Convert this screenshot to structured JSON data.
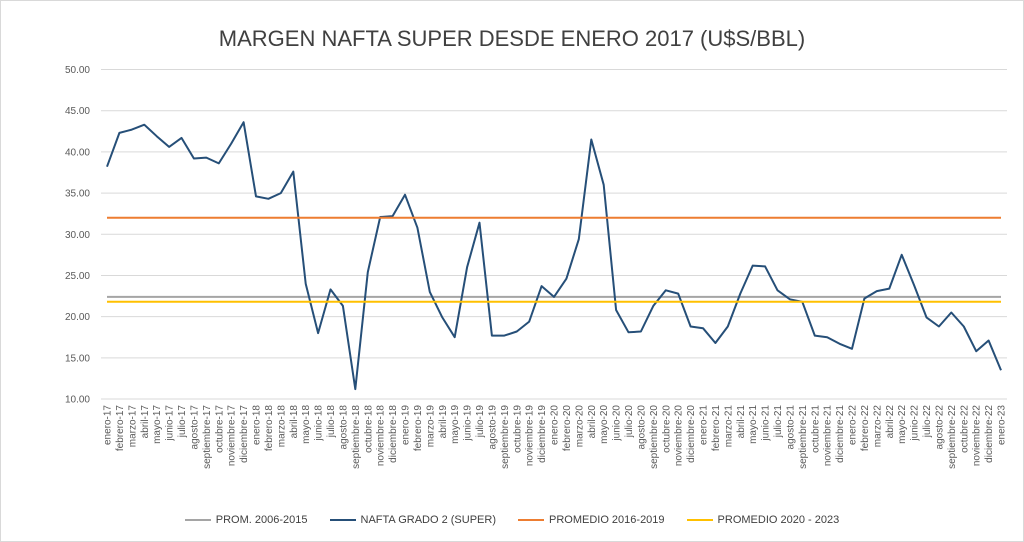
{
  "chart_data": {
    "type": "line",
    "title": "MARGEN NAFTA SUPER DESDE ENERO 2017 (U$S/BBL)",
    "xlabel": "",
    "ylabel": "",
    "ylim": [
      10,
      50
    ],
    "yticks": [
      "10.00",
      "15.00",
      "20.00",
      "25.00",
      "30.00",
      "35.00",
      "40.00",
      "45.00",
      "50.00"
    ],
    "grid": true,
    "legend_position": "bottom",
    "categories": [
      "enero-17",
      "febrero-17",
      "marzo-17",
      "abril-17",
      "mayo-17",
      "junio-17",
      "julio-17",
      "agosto-17",
      "septiembre-17",
      "octubre-17",
      "noviembre-17",
      "diciembre-17",
      "enero-18",
      "febrero-18",
      "marzo-18",
      "abril-18",
      "mayo-18",
      "junio-18",
      "julio-18",
      "agosto-18",
      "septiembre-18",
      "octubre-18",
      "noviembre-18",
      "diciembre-18",
      "enero-19",
      "febrero-19",
      "marzo-19",
      "abril-19",
      "mayo-19",
      "junio-19",
      "julio-19",
      "agosto-19",
      "septiembre-19",
      "octubre-19",
      "noviembre-19",
      "diciembre-19",
      "enero-20",
      "febrero-20",
      "marzo-20",
      "abril-20",
      "mayo-20",
      "junio-20",
      "julio-20",
      "agosto-20",
      "septiembre-20",
      "octubre-20",
      "noviembre-20",
      "diciembre-20",
      "enero-21",
      "febrero-21",
      "marzo-21",
      "abril-21",
      "mayo-21",
      "junio-21",
      "julio-21",
      "agosto-21",
      "septiembre-21",
      "octubre-21",
      "noviembre-21",
      "diciembre-21",
      "enero-22",
      "febrero-22",
      "marzo-22",
      "abril-22",
      "mayo-22",
      "junio-22",
      "julio-22",
      "agosto-22",
      "septiembre-22",
      "octubre-22",
      "noviembre-22",
      "diciembre-22",
      "enero-23"
    ],
    "series": [
      {
        "name": "PROM. 2006-2015",
        "color": "#a5a5a5",
        "constant": 22.4
      },
      {
        "name": "NAFTA GRADO 2 (SUPER)",
        "color": "#264f78",
        "values": [
          38.2,
          42.3,
          42.7,
          43.3,
          41.9,
          40.6,
          41.7,
          39.2,
          39.3,
          38.6,
          41.0,
          43.6,
          34.6,
          34.3,
          35.0,
          37.6,
          24.0,
          18.0,
          23.3,
          21.3,
          11.2,
          25.4,
          32.1,
          32.2,
          34.8,
          30.8,
          23.0,
          19.9,
          17.5,
          26.0,
          31.4,
          17.7,
          17.7,
          18.2,
          19.4,
          23.7,
          22.4,
          24.6,
          29.4,
          41.5,
          36.0,
          20.8,
          18.1,
          18.2,
          21.3,
          23.2,
          22.8,
          18.8,
          18.6,
          16.8,
          18.8,
          22.8,
          26.2,
          26.1,
          23.2,
          22.1,
          21.8,
          17.7,
          17.5,
          16.7,
          16.1,
          22.2,
          23.1,
          23.4,
          27.5,
          23.8,
          19.9,
          18.8,
          20.5,
          18.8,
          15.8,
          17.1,
          13.5
        ]
      },
      {
        "name": "PROMEDIO 2016-2019",
        "color": "#ed7d31",
        "constant": 32.0
      },
      {
        "name": "PROMEDIO 2020 - 2023",
        "color": "#ffc000",
        "constant": 21.8
      }
    ]
  }
}
